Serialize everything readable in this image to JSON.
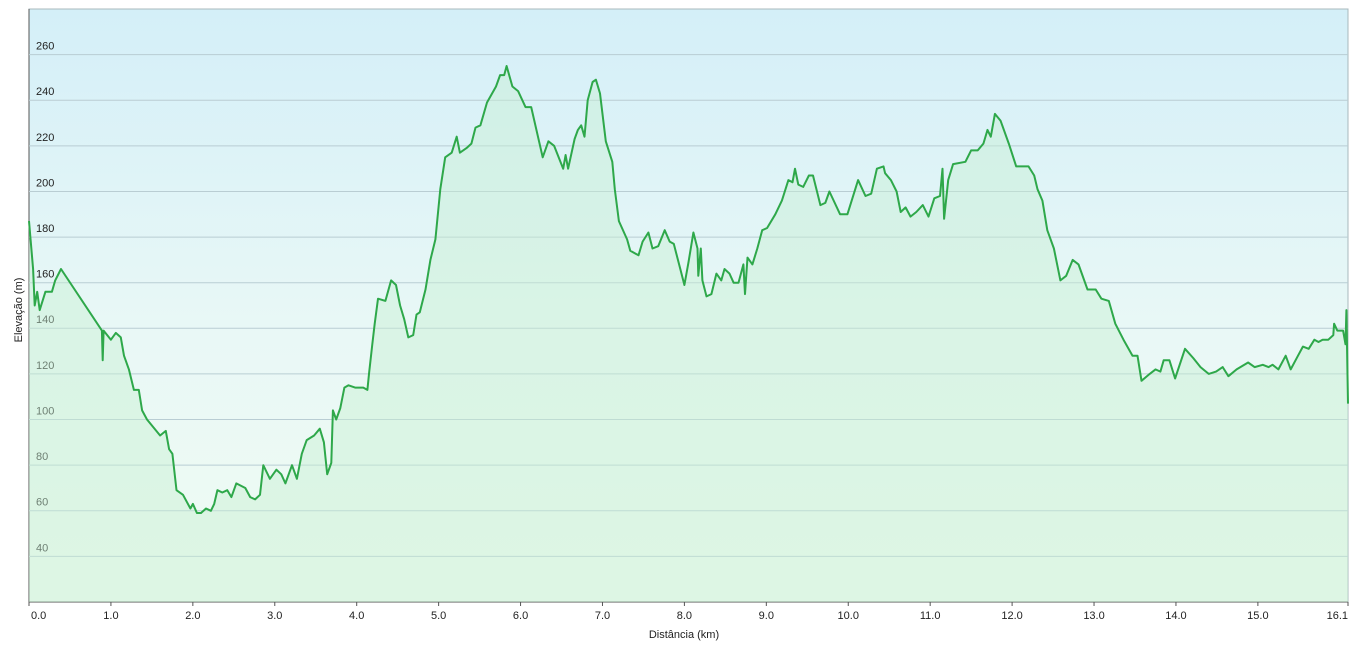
{
  "chart_data": {
    "type": "area",
    "xlabel": "Distância  (km)",
    "ylabel": "Elevação (m)",
    "color": "#2ea84a",
    "fill": "#c8f0d2",
    "grid": true,
    "xlim": [
      0,
      16.1
    ],
    "ylim": [
      20,
      280
    ],
    "xticks": [
      {
        "value": 0,
        "label": "0.0"
      },
      {
        "value": 1,
        "label": "1.0"
      },
      {
        "value": 2,
        "label": "2.0"
      },
      {
        "value": 3,
        "label": "3.0"
      },
      {
        "value": 4,
        "label": "4.0"
      },
      {
        "value": 5,
        "label": "5.0"
      },
      {
        "value": 6,
        "label": "6.0"
      },
      {
        "value": 7,
        "label": "7.0"
      },
      {
        "value": 8,
        "label": "8.0"
      },
      {
        "value": 9,
        "label": "9.0"
      },
      {
        "value": 10,
        "label": "10.0"
      },
      {
        "value": 11,
        "label": "11.0"
      },
      {
        "value": 12,
        "label": "12.0"
      },
      {
        "value": 13,
        "label": "13.0"
      },
      {
        "value": 14,
        "label": "14.0"
      },
      {
        "value": 15,
        "label": "15.0"
      },
      16.1
    ],
    "yticks": [
      40,
      60,
      80,
      100,
      120,
      140,
      160,
      180,
      200,
      220,
      240,
      260
    ],
    "x": [
      0,
      0.05,
      0.07,
      0.1,
      0.13,
      0.2,
      0.28,
      0.32,
      0.39,
      0.89,
      0.9,
      0.91,
      1.0,
      1.06,
      1.12,
      1.16,
      1.22,
      1.28,
      1.34,
      1.38,
      1.44,
      1.6,
      1.67,
      1.71,
      1.75,
      1.8,
      1.88,
      1.97,
      2.0,
      2.05,
      2.1,
      2.16,
      2.22,
      2.26,
      2.3,
      2.36,
      2.42,
      2.47,
      2.53,
      2.64,
      2.7,
      2.76,
      2.82,
      2.86,
      2.94,
      3.02,
      3.08,
      3.13,
      3.21,
      3.27,
      3.33,
      3.39,
      3.48,
      3.55,
      3.6,
      3.64,
      3.69,
      3.71,
      3.75,
      3.8,
      3.85,
      3.9,
      3.98,
      4.08,
      4.13,
      4.15,
      4.19,
      4.22,
      4.26,
      4.35,
      4.42,
      4.48,
      4.53,
      4.58,
      4.63,
      4.69,
      4.73,
      4.77,
      4.84,
      4.9,
      4.96,
      5.02,
      5.08,
      5.16,
      5.22,
      5.26,
      5.34,
      5.4,
      5.45,
      5.51,
      5.59,
      5.7,
      5.75,
      5.8,
      5.83,
      5.9,
      5.97,
      6.06,
      6.13,
      6.27,
      6.34,
      6.41,
      6.52,
      6.55,
      6.58,
      6.66,
      6.7,
      6.74,
      6.78,
      6.82,
      6.88,
      6.92,
      6.97,
      7.04,
      7.12,
      7.15,
      7.2,
      7.3,
      7.34,
      7.44,
      7.49,
      7.56,
      7.61,
      7.68,
      7.76,
      7.82,
      7.87,
      7.95,
      8.0,
      8.05,
      8.11,
      8.16,
      8.17,
      8.2,
      8.22,
      8.27,
      8.33,
      8.39,
      8.45,
      8.49,
      8.55,
      8.6,
      8.66,
      8.72,
      8.74,
      8.77,
      8.83,
      8.89,
      8.95,
      9.01,
      9.11,
      9.19,
      9.27,
      9.32,
      9.35,
      9.39,
      9.45,
      9.52,
      9.57,
      9.66,
      9.72,
      9.77,
      9.9,
      9.99,
      10.05,
      10.12,
      10.21,
      10.28,
      10.35,
      10.43,
      10.45,
      10.52,
      10.59,
      10.64,
      10.7,
      10.76,
      10.83,
      10.91,
      10.98,
      11.05,
      11.12,
      11.15,
      11.17,
      11.22,
      11.28,
      11.43,
      11.5,
      11.58,
      11.65,
      11.7,
      11.74,
      11.79,
      11.86,
      11.96,
      12.05,
      12.2,
      12.27,
      12.31,
      12.37,
      12.43,
      12.51,
      12.59,
      12.66,
      12.74,
      12.81,
      12.92,
      13.02,
      13.09,
      13.18,
      13.26,
      13.36,
      13.47,
      13.53,
      13.58,
      13.68,
      13.75,
      13.81,
      13.85,
      13.92,
      13.99,
      14.11,
      14.21,
      14.3,
      14.4,
      14.49,
      14.57,
      14.64,
      14.74,
      14.88,
      14.96,
      15.06,
      15.13,
      15.18,
      15.25,
      15.34,
      15.4,
      15.49,
      15.55,
      15.62,
      15.69,
      15.74,
      15.79,
      15.86,
      15.92,
      15.93,
      15.97,
      16.04,
      16.07,
      16.08,
      16.1
    ],
    "values": [
      187,
      166,
      150,
      156,
      148,
      156,
      156,
      161,
      166,
      139,
      126,
      139,
      135,
      138,
      136,
      128,
      122,
      113,
      113,
      104,
      100,
      93,
      95,
      87,
      85,
      69,
      67,
      61,
      63,
      59,
      59,
      61,
      60,
      63,
      69,
      68,
      69,
      66,
      72,
      70,
      66,
      65,
      67,
      80,
      74,
      78,
      76,
      72,
      80,
      74,
      85,
      91,
      93,
      96,
      90,
      76,
      81,
      104,
      100,
      105,
      114,
      115,
      114,
      114,
      113,
      120,
      133,
      142,
      153,
      152,
      161,
      159,
      150,
      144,
      136,
      137,
      146,
      147,
      157,
      170,
      179,
      201,
      215,
      217,
      224,
      217,
      219,
      221,
      228,
      229,
      239,
      246,
      251,
      251,
      255,
      246,
      244,
      237,
      237,
      215,
      222,
      220,
      210,
      216,
      210,
      223,
      227,
      229,
      224,
      240,
      248,
      249,
      243,
      222,
      213,
      201,
      187,
      179,
      174,
      172,
      178,
      182,
      175,
      176,
      183,
      178,
      177,
      166,
      159,
      169,
      182,
      175,
      163,
      175,
      161,
      154,
      155,
      164,
      161,
      166,
      164,
      160,
      160,
      168,
      155,
      171,
      168,
      175,
      183,
      184,
      190,
      196,
      205,
      204,
      210,
      203,
      202,
      207,
      207,
      194,
      195,
      200,
      190,
      190,
      197,
      205,
      198,
      199,
      210,
      211,
      208,
      205,
      200,
      191,
      193,
      189,
      191,
      194,
      189,
      197,
      198,
      210,
      188,
      205,
      212,
      213,
      218,
      218,
      221,
      227,
      224,
      234,
      231,
      221,
      211,
      211,
      207,
      201,
      196,
      183,
      175,
      161,
      163,
      170,
      168,
      157,
      157,
      153,
      152,
      142,
      135,
      128,
      128,
      117,
      120,
      122,
      121,
      126,
      126,
      118,
      131,
      127,
      123,
      120,
      121,
      123,
      119,
      122,
      125,
      123,
      124,
      123,
      124,
      122,
      128,
      122,
      128,
      132,
      131,
      135,
      134,
      135,
      135,
      137,
      142,
      139,
      139,
      133,
      148,
      107
    ]
  }
}
